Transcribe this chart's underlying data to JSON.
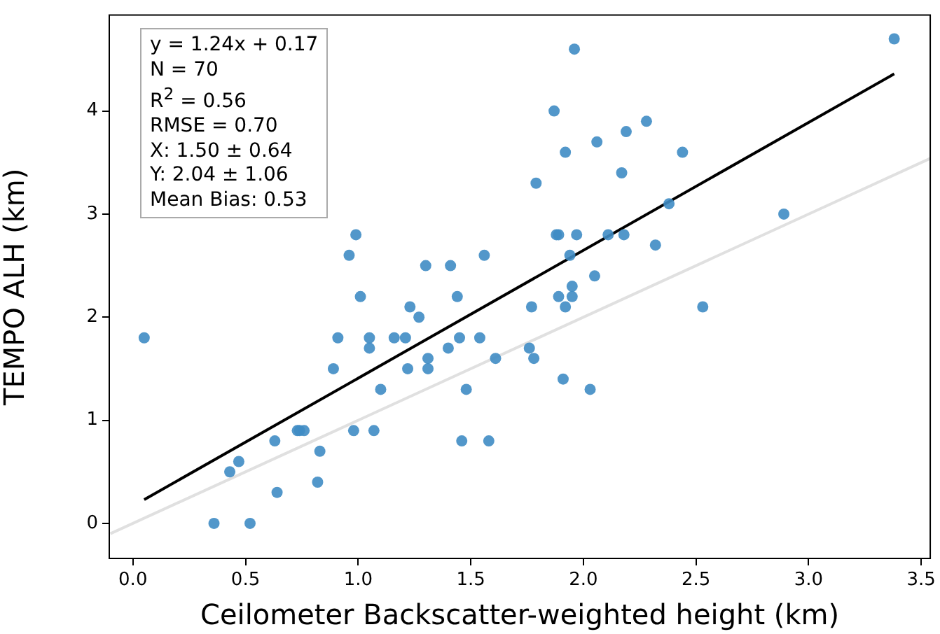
{
  "chart_data": {
    "type": "scatter",
    "xlabel": "Ceilometer Backscatter-weighted height (km)",
    "ylabel": "TEMPO ALH (km)",
    "annotations": [
      "y = 1.24x + 0.17",
      "N = 70",
      "R$^{2}$ = 0.56",
      "RMSE = 0.70",
      "X: 1.50 ± 0.64",
      "Y: 2.04 ± 1.06",
      "Mean Bias: 0.53"
    ],
    "xlim": [
      -0.105,
      3.54
    ],
    "ylim": [
      -0.34,
      4.93
    ],
    "xticks": [
      {
        "value": 0,
        "label": "0.0"
      },
      {
        "value": 0.5,
        "label": "0.5"
      },
      {
        "value": 1,
        "label": "1.0"
      },
      {
        "value": 1.5,
        "label": "1.5"
      },
      {
        "value": 2,
        "label": "2.0"
      },
      {
        "value": 2.5,
        "label": "2.5"
      },
      {
        "value": 3,
        "label": "3.0"
      },
      {
        "value": 3.5,
        "label": "3.5"
      }
    ],
    "yticks": [
      0,
      1,
      2,
      3,
      4
    ],
    "grid": false,
    "legend": false,
    "marker": "circle",
    "series": [
      {
        "type": "line",
        "marker": "none",
        "color": "#e0e0e0",
        "x": [
          -0.1,
          3.54
        ],
        "values": [
          -0.1,
          3.54
        ]
      },
      {
        "type": "line",
        "marker": "none",
        "color": "#000000",
        "x": [
          0.05,
          3.38
        ],
        "values": [
          0.23,
          4.36
        ]
      },
      {
        "color": "#3f8cc4",
        "x": [
          0.05,
          0.36,
          0.43,
          0.47,
          0.52,
          0.63,
          0.64,
          0.73,
          0.74,
          0.76,
          0.82,
          0.83,
          0.89,
          0.91,
          0.96,
          0.98,
          0.99,
          1.01,
          1.05,
          1.05,
          1.07,
          1.1,
          1.16,
          1.21,
          1.22,
          1.23,
          1.27,
          1.3,
          1.31,
          1.31,
          1.4,
          1.41,
          1.44,
          1.45,
          1.46,
          1.48,
          1.54,
          1.56,
          1.58,
          1.61,
          1.76,
          1.77,
          1.78,
          1.79,
          1.87,
          1.88,
          1.89,
          1.89,
          1.91,
          1.92,
          1.92,
          1.94,
          1.95,
          1.95,
          1.96,
          1.97,
          2.03,
          2.05,
          2.06,
          2.11,
          2.17,
          2.18,
          2.19,
          2.28,
          2.32,
          2.38,
          2.44,
          2.53,
          2.89,
          3.38
        ],
        "values": [
          1.8,
          0.0,
          0.5,
          0.6,
          0.0,
          0.8,
          0.3,
          0.9,
          0.9,
          0.9,
          0.4,
          0.7,
          1.5,
          1.8,
          2.6,
          0.9,
          2.8,
          2.2,
          1.8,
          1.7,
          0.9,
          1.3,
          1.8,
          1.8,
          1.5,
          2.1,
          2.0,
          2.5,
          1.6,
          1.5,
          1.7,
          2.5,
          2.2,
          1.8,
          0.8,
          1.3,
          1.8,
          2.6,
          0.8,
          1.6,
          1.7,
          2.1,
          1.6,
          3.3,
          4.0,
          2.8,
          2.8,
          2.2,
          1.4,
          3.6,
          2.1,
          2.6,
          2.2,
          2.3,
          4.6,
          2.8,
          1.3,
          2.4,
          3.7,
          2.8,
          3.4,
          2.8,
          3.8,
          3.9,
          2.7,
          3.1,
          3.6,
          2.1,
          3.0,
          4.7
        ]
      }
    ]
  }
}
